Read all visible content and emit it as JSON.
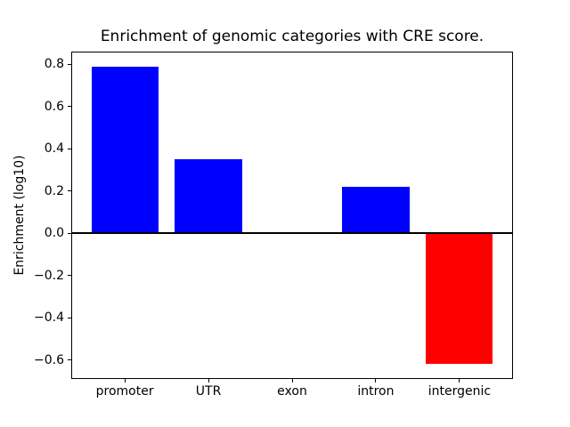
{
  "figure": {
    "background": "#ffffff"
  },
  "chart_data": {
    "type": "bar",
    "title": "Enrichment of genomic categories with CRE score.",
    "xlabel": "",
    "ylabel": "Enrichment (log10)",
    "categories": [
      "promoter",
      "UTR",
      "exon",
      "intron",
      "intergenic"
    ],
    "values": [
      0.79,
      0.35,
      0.0,
      0.22,
      -0.62
    ],
    "bar_colors": [
      "#0000ff",
      "#0000ff",
      "#0000ff",
      "#0000ff",
      "#ff0000"
    ],
    "positive_color": "#0000ff",
    "negative_color": "#ff0000",
    "bar_width_units": 0.8,
    "xlim": [
      -0.64,
      4.64
    ],
    "ylim": [
      -0.69,
      0.86
    ],
    "yticks": [
      0.8,
      0.6,
      0.4,
      0.2,
      0.0,
      -0.2,
      -0.4,
      -0.6
    ],
    "ytick_labels": [
      "0.8",
      "0.6",
      "0.4",
      "0.2",
      "0.0",
      "−0.2",
      "−0.4",
      "−0.6"
    ],
    "zero_line": true,
    "grid": false,
    "legend": null,
    "axis_color": "#000000",
    "text_color": "#000000"
  }
}
